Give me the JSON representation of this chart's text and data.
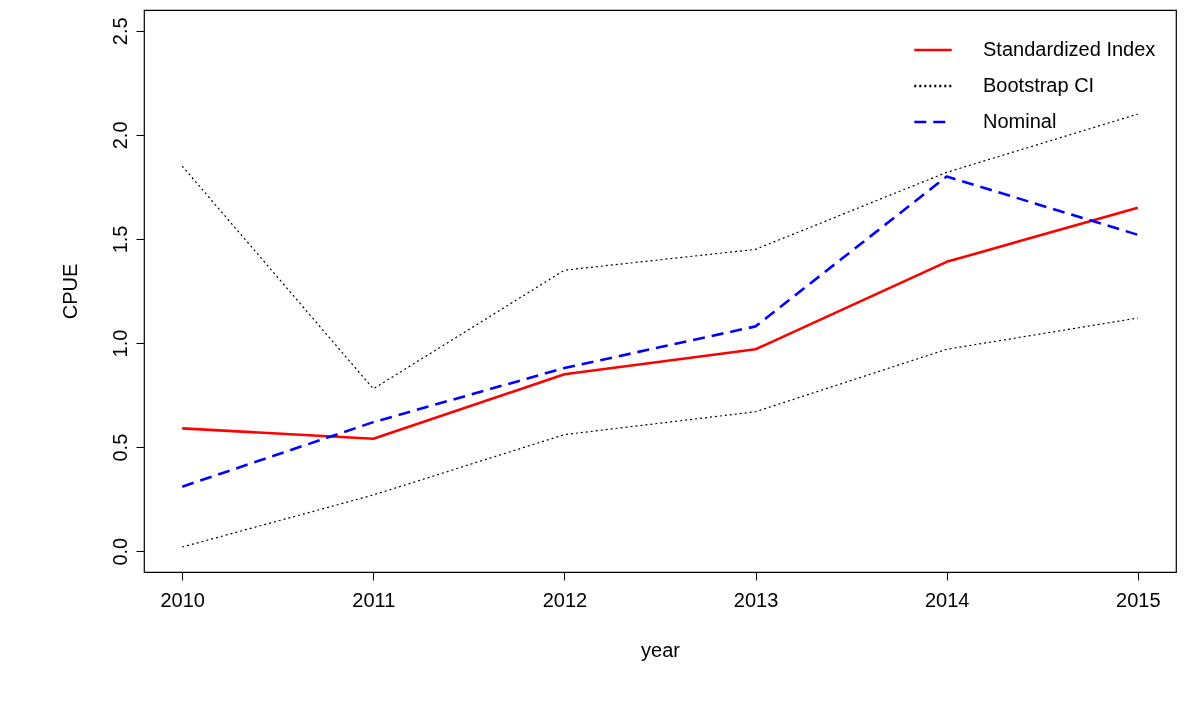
{
  "chart_data": {
    "type": "line",
    "xlabel": "year",
    "ylabel": "CPUE",
    "x": [
      2010,
      2011,
      2012,
      2013,
      2014,
      2015
    ],
    "series": [
      {
        "name": "Standardized Index",
        "color": "#ff0000",
        "line_style": "solid",
        "values": [
          0.59,
          0.54,
          0.85,
          0.97,
          1.39,
          1.65
        ]
      },
      {
        "name": "Bootstrap CI",
        "color": "#000000",
        "line_style": "dotted",
        "values": [
          1.85,
          0.78,
          1.35,
          1.45,
          1.82,
          2.1
        ]
      },
      {
        "color": "#000000",
        "line_style": "dotted",
        "values": [
          0.02,
          0.27,
          0.56,
          0.67,
          0.97,
          1.12
        ]
      },
      {
        "name": "Nominal",
        "color": "#0000ff",
        "line_style": "dashed",
        "values": [
          0.31,
          0.62,
          0.88,
          1.08,
          1.8,
          1.52
        ]
      }
    ],
    "xlim": [
      2009.8,
      2015.2
    ],
    "ylim": [
      -0.1,
      2.6
    ],
    "xticks": [
      2010,
      2011,
      2012,
      2013,
      2014,
      2015
    ],
    "yticks": [
      {
        "value": 0,
        "label": "0.0"
      },
      {
        "value": 0.5,
        "label": "0.5"
      },
      {
        "value": 1,
        "label": "1.0"
      },
      {
        "value": 1.5,
        "label": "1.5"
      },
      {
        "value": 2,
        "label": "2.0"
      },
      {
        "value": 2.5,
        "label": "2.5"
      }
    ],
    "legend": "top right",
    "grid": false
  }
}
